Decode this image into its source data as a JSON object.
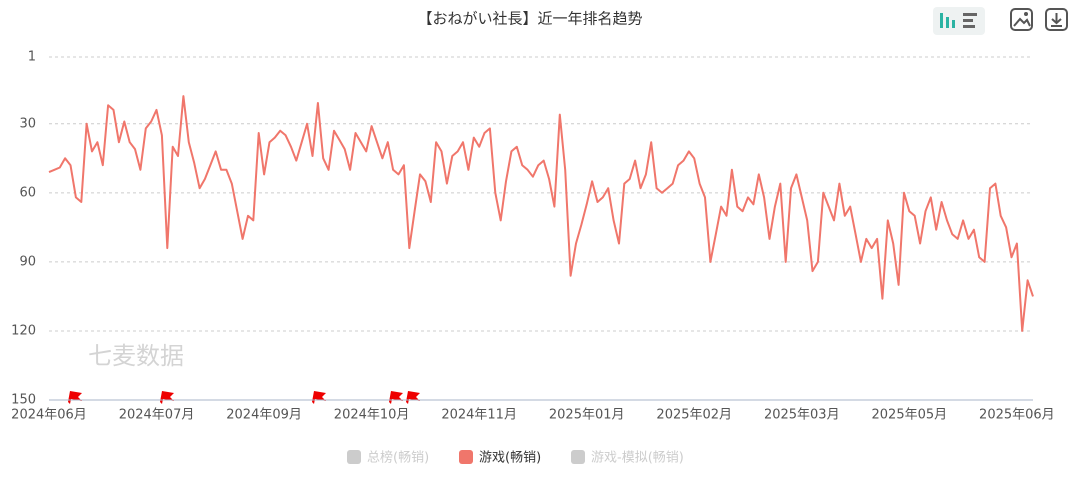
{
  "chart_data": {
    "type": "line",
    "title": "【おねがい社長】近一年排名趋势",
    "watermark": "七麦数据",
    "categories": [
      "2024年06月",
      null,
      null,
      null,
      null,
      null,
      null,
      null,
      null,
      null,
      null,
      null,
      null,
      null,
      null,
      null,
      null,
      null,
      null,
      null,
      "2024年07月",
      null,
      null,
      null,
      null,
      null,
      null,
      null,
      null,
      null,
      null,
      null,
      null,
      null,
      null,
      null,
      null,
      null,
      null,
      null,
      "2024年09月",
      null,
      null,
      null,
      null,
      null,
      null,
      null,
      null,
      null,
      null,
      null,
      null,
      null,
      null,
      null,
      null,
      null,
      null,
      null,
      "2024年10月",
      null,
      null,
      null,
      null,
      null,
      null,
      null,
      null,
      null,
      null,
      null,
      null,
      null,
      null,
      null,
      null,
      null,
      null,
      null,
      "2024年11月",
      null,
      null,
      null,
      null,
      null,
      null,
      null,
      null,
      null,
      null,
      null,
      null,
      null,
      null,
      null,
      null,
      null,
      null,
      null,
      "2025年01月",
      null,
      null,
      null,
      null,
      null,
      null,
      null,
      null,
      null,
      null,
      null,
      null,
      null,
      null,
      null,
      null,
      null,
      null,
      null,
      "2025年02月",
      null,
      null,
      null,
      null,
      null,
      null,
      null,
      null,
      null,
      null,
      null,
      null,
      null,
      null,
      null,
      null,
      null,
      null,
      null,
      "2025年03月",
      null,
      null,
      null,
      null,
      null,
      null,
      null,
      null,
      null,
      null,
      null,
      null,
      null,
      null,
      null,
      null,
      null,
      null,
      null,
      "2025年05月",
      null,
      null,
      null,
      null,
      null,
      null,
      null,
      null,
      null,
      null,
      null,
      null,
      null,
      null,
      null,
      null,
      null,
      null,
      null,
      "2025年06月",
      null,
      null,
      null
    ],
    "series": [
      {
        "name": "总榜(畅销)",
        "color": "#cccccc",
        "visible": false
      },
      {
        "name": "游戏(畅销)",
        "color": "#f0766b",
        "visible": true,
        "values": [
          51,
          50,
          49,
          45,
          48,
          62,
          64,
          30,
          42,
          38,
          48,
          22,
          24,
          38,
          29,
          38,
          41,
          50,
          32,
          29,
          24,
          35,
          84,
          40,
          44,
          18,
          38,
          47,
          58,
          54,
          48,
          42,
          50,
          50,
          56,
          68,
          80,
          70,
          72,
          34,
          52,
          38,
          36,
          33,
          35,
          40,
          46,
          38,
          30,
          44,
          21,
          45,
          50,
          33,
          37,
          41,
          50,
          34,
          38,
          42,
          31,
          38,
          45,
          38,
          50,
          52,
          48,
          84,
          68,
          52,
          55,
          64,
          38,
          42,
          56,
          44,
          42,
          38,
          50,
          36,
          40,
          34,
          32,
          60,
          72,
          55,
          42,
          40,
          48,
          50,
          53,
          48,
          46,
          54,
          66,
          26,
          50,
          96,
          82,
          74,
          65,
          55,
          64,
          62,
          58,
          72,
          82,
          56,
          54,
          46,
          58,
          52,
          38,
          58,
          60,
          58,
          56,
          48,
          46,
          42,
          45,
          56,
          62,
          90,
          78,
          66,
          70,
          50,
          66,
          68,
          62,
          65,
          52,
          62,
          80,
          66,
          56,
          90,
          58,
          52,
          62,
          72,
          94,
          90,
          60,
          66,
          72,
          56,
          70,
          66,
          78,
          90,
          80,
          84,
          80,
          106,
          72,
          82,
          100,
          60,
          68,
          70,
          82,
          68,
          62,
          76,
          64,
          72,
          78,
          80,
          72,
          80,
          76,
          88,
          90,
          58,
          56,
          70,
          75,
          88,
          82,
          120,
          98,
          105
        ]
      },
      {
        "name": "游戏-模拟(畅销)",
        "color": "#cccccc",
        "visible": false
      }
    ],
    "ylim": [
      1,
      150
    ],
    "inverted": true,
    "yticks": [
      1,
      30,
      60,
      90,
      120,
      150
    ],
    "grid": true
  }
}
